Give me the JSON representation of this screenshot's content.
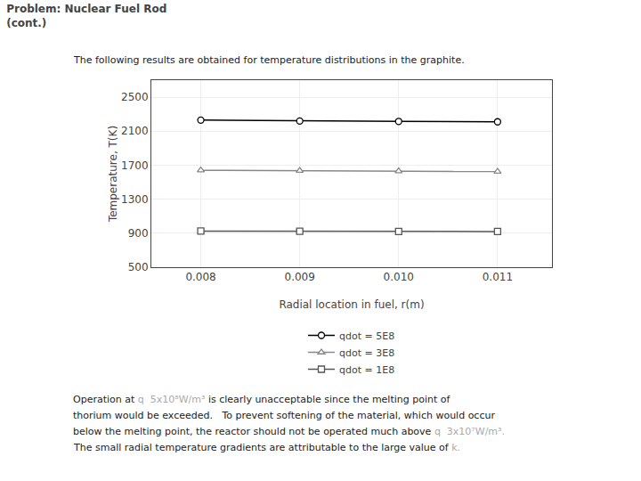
{
  "chart_data": {
    "type": "line",
    "title": [
      "Problem: Nuclear Fuel Rod",
      "(cont.)"
    ],
    "subtitle": "The following results are obtained for temperature distributions in the graphite.",
    "xlabel": "Radial location in fuel, r(m)",
    "ylabel": "Temperature, T(K)",
    "x": [
      0.008,
      0.009,
      0.01,
      0.011
    ],
    "series": [
      {
        "name": "qdot = 5E8",
        "color": "#000000",
        "marker": "circle",
        "values": [
          2230,
          2220,
          2215,
          2210
        ]
      },
      {
        "name": "qdot = 3E8",
        "color": "#888888",
        "marker": "triangle-up",
        "values": [
          1640,
          1635,
          1630,
          1625
        ]
      },
      {
        "name": "qdot = 1E8",
        "color": "#555555",
        "marker": "square",
        "values": [
          925,
          922,
          921,
          920
        ]
      }
    ],
    "xlim": [
      0.0075,
      0.01155
    ],
    "xticks": [
      0.008,
      0.009,
      {
        "value": 0.01,
        "label": "0.010"
      },
      0.011
    ],
    "ylim": [
      500,
      2700
    ],
    "yticks": [
      500,
      900,
      1300,
      1700,
      2100,
      2500
    ],
    "grid": true,
    "legend": "bottom",
    "annotations": [
      [
        {
          "text": "Operation at"
        },
        {
          "text": "q  5x10⁸W/m³",
          "color": "#aaaaaa"
        },
        {
          "text": "is clearly unacceptable since the melting point of"
        }
      ],
      [
        {
          "text": "thorium would be exceeded.   To prevent softening of the material, which would occur"
        }
      ],
      [
        {
          "text": "below the melting point, the reactor should not be operated much above"
        },
        {
          "text": "q  3x10⁷W/m³.",
          "color": "#aaaaaa"
        }
      ],
      [
        {
          "text": "The small radial temperature gradients are attributable to the large value of"
        },
        {
          "text": "k.",
          "color": "#aaaaaa"
        }
      ]
    ]
  }
}
